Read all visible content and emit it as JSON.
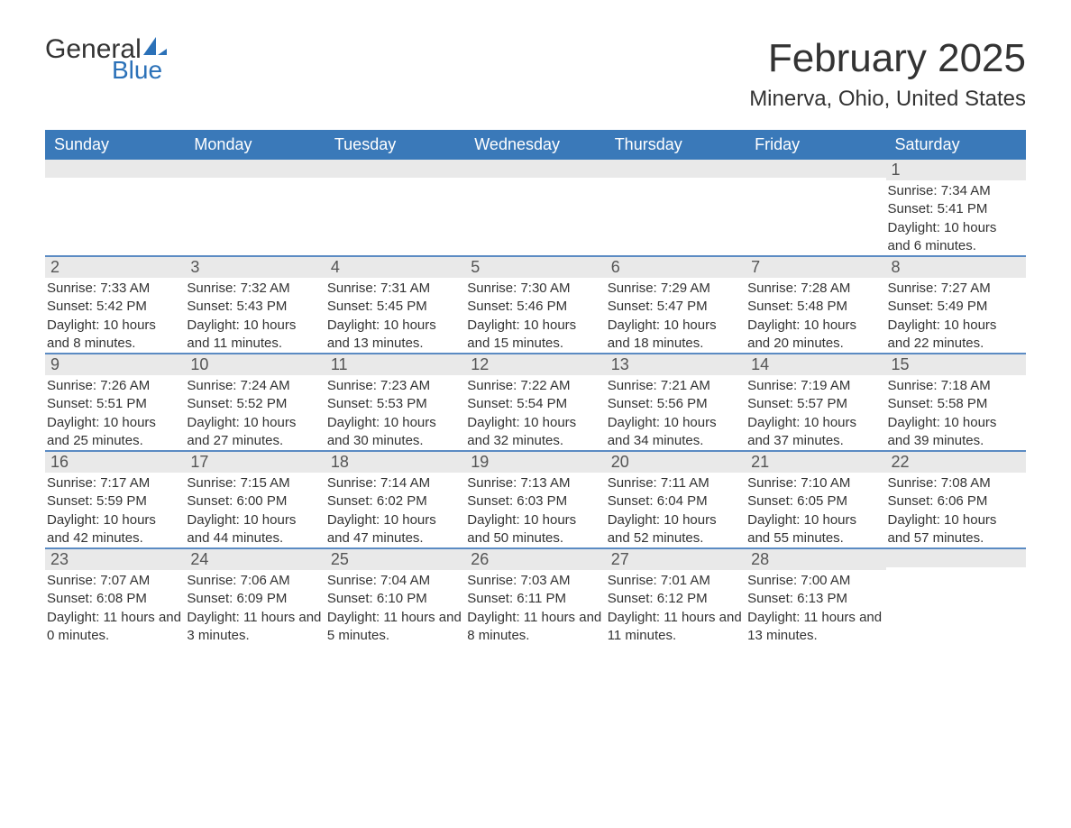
{
  "logo": {
    "text_general": "General",
    "text_blue": "Blue",
    "brand_color": "#2b71b8"
  },
  "header": {
    "month_title": "February 2025",
    "location": "Minerva, Ohio, United States"
  },
  "styling": {
    "header_row_bg": "#3a79b9",
    "header_row_text": "#ffffff",
    "day_row_bg": "#e9e9e9",
    "divider_color": "#5b8bc3",
    "text_color": "#333333",
    "background": "#ffffff",
    "dayname_fontsize": 18,
    "title_fontsize": 44,
    "location_fontsize": 24,
    "body_fontsize": 15
  },
  "daynames": [
    "Sunday",
    "Monday",
    "Tuesday",
    "Wednesday",
    "Thursday",
    "Friday",
    "Saturday"
  ],
  "weeks": [
    [
      null,
      null,
      null,
      null,
      null,
      null,
      {
        "n": "1",
        "sunrise": "Sunrise: 7:34 AM",
        "sunset": "Sunset: 5:41 PM",
        "daylight": "Daylight: 10 hours and 6 minutes."
      }
    ],
    [
      {
        "n": "2",
        "sunrise": "Sunrise: 7:33 AM",
        "sunset": "Sunset: 5:42 PM",
        "daylight": "Daylight: 10 hours and 8 minutes."
      },
      {
        "n": "3",
        "sunrise": "Sunrise: 7:32 AM",
        "sunset": "Sunset: 5:43 PM",
        "daylight": "Daylight: 10 hours and 11 minutes."
      },
      {
        "n": "4",
        "sunrise": "Sunrise: 7:31 AM",
        "sunset": "Sunset: 5:45 PM",
        "daylight": "Daylight: 10 hours and 13 minutes."
      },
      {
        "n": "5",
        "sunrise": "Sunrise: 7:30 AM",
        "sunset": "Sunset: 5:46 PM",
        "daylight": "Daylight: 10 hours and 15 minutes."
      },
      {
        "n": "6",
        "sunrise": "Sunrise: 7:29 AM",
        "sunset": "Sunset: 5:47 PM",
        "daylight": "Daylight: 10 hours and 18 minutes."
      },
      {
        "n": "7",
        "sunrise": "Sunrise: 7:28 AM",
        "sunset": "Sunset: 5:48 PM",
        "daylight": "Daylight: 10 hours and 20 minutes."
      },
      {
        "n": "8",
        "sunrise": "Sunrise: 7:27 AM",
        "sunset": "Sunset: 5:49 PM",
        "daylight": "Daylight: 10 hours and 22 minutes."
      }
    ],
    [
      {
        "n": "9",
        "sunrise": "Sunrise: 7:26 AM",
        "sunset": "Sunset: 5:51 PM",
        "daylight": "Daylight: 10 hours and 25 minutes."
      },
      {
        "n": "10",
        "sunrise": "Sunrise: 7:24 AM",
        "sunset": "Sunset: 5:52 PM",
        "daylight": "Daylight: 10 hours and 27 minutes."
      },
      {
        "n": "11",
        "sunrise": "Sunrise: 7:23 AM",
        "sunset": "Sunset: 5:53 PM",
        "daylight": "Daylight: 10 hours and 30 minutes."
      },
      {
        "n": "12",
        "sunrise": "Sunrise: 7:22 AM",
        "sunset": "Sunset: 5:54 PM",
        "daylight": "Daylight: 10 hours and 32 minutes."
      },
      {
        "n": "13",
        "sunrise": "Sunrise: 7:21 AM",
        "sunset": "Sunset: 5:56 PM",
        "daylight": "Daylight: 10 hours and 34 minutes."
      },
      {
        "n": "14",
        "sunrise": "Sunrise: 7:19 AM",
        "sunset": "Sunset: 5:57 PM",
        "daylight": "Daylight: 10 hours and 37 minutes."
      },
      {
        "n": "15",
        "sunrise": "Sunrise: 7:18 AM",
        "sunset": "Sunset: 5:58 PM",
        "daylight": "Daylight: 10 hours and 39 minutes."
      }
    ],
    [
      {
        "n": "16",
        "sunrise": "Sunrise: 7:17 AM",
        "sunset": "Sunset: 5:59 PM",
        "daylight": "Daylight: 10 hours and 42 minutes."
      },
      {
        "n": "17",
        "sunrise": "Sunrise: 7:15 AM",
        "sunset": "Sunset: 6:00 PM",
        "daylight": "Daylight: 10 hours and 44 minutes."
      },
      {
        "n": "18",
        "sunrise": "Sunrise: 7:14 AM",
        "sunset": "Sunset: 6:02 PM",
        "daylight": "Daylight: 10 hours and 47 minutes."
      },
      {
        "n": "19",
        "sunrise": "Sunrise: 7:13 AM",
        "sunset": "Sunset: 6:03 PM",
        "daylight": "Daylight: 10 hours and 50 minutes."
      },
      {
        "n": "20",
        "sunrise": "Sunrise: 7:11 AM",
        "sunset": "Sunset: 6:04 PM",
        "daylight": "Daylight: 10 hours and 52 minutes."
      },
      {
        "n": "21",
        "sunrise": "Sunrise: 7:10 AM",
        "sunset": "Sunset: 6:05 PM",
        "daylight": "Daylight: 10 hours and 55 minutes."
      },
      {
        "n": "22",
        "sunrise": "Sunrise: 7:08 AM",
        "sunset": "Sunset: 6:06 PM",
        "daylight": "Daylight: 10 hours and 57 minutes."
      }
    ],
    [
      {
        "n": "23",
        "sunrise": "Sunrise: 7:07 AM",
        "sunset": "Sunset: 6:08 PM",
        "daylight": "Daylight: 11 hours and 0 minutes."
      },
      {
        "n": "24",
        "sunrise": "Sunrise: 7:06 AM",
        "sunset": "Sunset: 6:09 PM",
        "daylight": "Daylight: 11 hours and 3 minutes."
      },
      {
        "n": "25",
        "sunrise": "Sunrise: 7:04 AM",
        "sunset": "Sunset: 6:10 PM",
        "daylight": "Daylight: 11 hours and 5 minutes."
      },
      {
        "n": "26",
        "sunrise": "Sunrise: 7:03 AM",
        "sunset": "Sunset: 6:11 PM",
        "daylight": "Daylight: 11 hours and 8 minutes."
      },
      {
        "n": "27",
        "sunrise": "Sunrise: 7:01 AM",
        "sunset": "Sunset: 6:12 PM",
        "daylight": "Daylight: 11 hours and 11 minutes."
      },
      {
        "n": "28",
        "sunrise": "Sunrise: 7:00 AM",
        "sunset": "Sunset: 6:13 PM",
        "daylight": "Daylight: 11 hours and 13 minutes."
      },
      null
    ]
  ]
}
